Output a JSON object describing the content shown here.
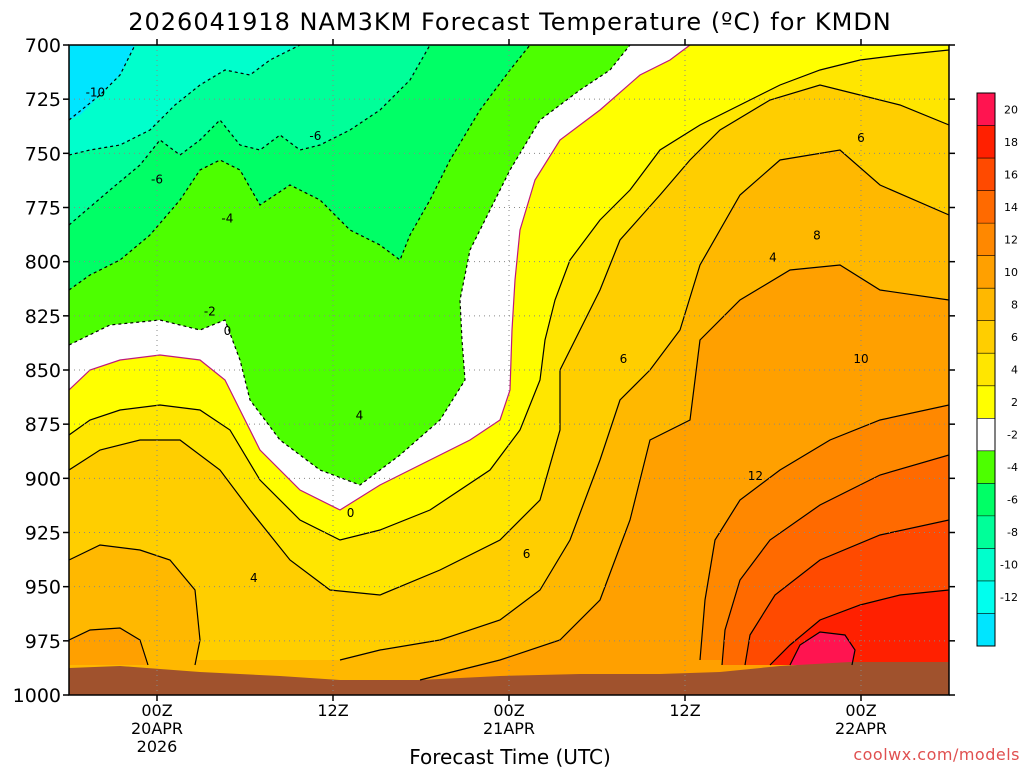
{
  "chart_data": {
    "type": "heatmap",
    "title": "2026041918 NAM3KM Forecast Temperature (ºC) for KMDN",
    "xlabel": "Forecast Time (UTC)",
    "credit": "coolwx.com/models",
    "y_axis": {
      "ticks": [
        700,
        725,
        750,
        775,
        800,
        825,
        850,
        875,
        900,
        925,
        950,
        975,
        1000
      ],
      "range": [
        700,
        1000
      ],
      "inverted": true,
      "grid": true
    },
    "x_axis": {
      "range_hours": [
        -5,
        45
      ],
      "grid": true,
      "ticks": [
        {
          "hour": 0,
          "lines": [
            "00Z",
            "20APR",
            "2026"
          ]
        },
        {
          "hour": 10,
          "lines": [
            "12Z"
          ]
        },
        {
          "hour": 20,
          "lines": [
            "00Z",
            "21APR"
          ]
        },
        {
          "hour": 30,
          "lines": [
            "12Z"
          ]
        },
        {
          "hour": 40,
          "lines": [
            "00Z",
            "22APR"
          ]
        }
      ]
    },
    "colorbar": {
      "labels": [
        "20",
        "18",
        "16",
        "14",
        "12",
        "10",
        "8",
        "6",
        "4",
        "2",
        "-2",
        "-4",
        "-6",
        "-8",
        "-10",
        "-12"
      ],
      "colors": [
        "#ff1450",
        "#ff2000",
        "#ff4a00",
        "#ff6a00",
        "#ff8800",
        "#ffa000",
        "#ffb800",
        "#ffce00",
        "#ffe600",
        "#ffff00",
        "#ffffff",
        "#4dff00",
        "#00ff66",
        "#00ff99",
        "#00ffcc",
        "#00ffee",
        "#00e5ff"
      ]
    },
    "fill_colors": {
      "m12": "#00e5ff",
      "m10": "#00ffcc",
      "m8": "#00ff99",
      "m6": "#00ff66",
      "m4": "#4dff00",
      "m2": "#ffffff",
      "p2": "#ffff00",
      "p4": "#ffe600",
      "p6": "#ffce00",
      "p8": "#ffb800",
      "p10": "#ffa000",
      "p12": "#ff8800",
      "p14": "#ff6a00",
      "p16": "#ff4a00",
      "p18": "#ff2000",
      "p20": "#ff1450",
      "ground": "#a0522d"
    },
    "contour_labels": [
      {
        "text": "-10",
        "hour": -3.5,
        "pressure": 722
      },
      {
        "text": "-6",
        "hour": 0,
        "pressure": 762
      },
      {
        "text": "-6",
        "hour": 9,
        "pressure": 742
      },
      {
        "text": "-4",
        "hour": 4,
        "pressure": 780
      },
      {
        "text": "-2",
        "hour": 3,
        "pressure": 823
      },
      {
        "text": "0",
        "hour": 4,
        "pressure": 832
      },
      {
        "text": "4",
        "hour": 11.5,
        "pressure": 871
      },
      {
        "text": "0",
        "hour": 11,
        "pressure": 916
      },
      {
        "text": "4",
        "hour": 5.5,
        "pressure": 946
      },
      {
        "text": "6",
        "hour": 21,
        "pressure": 935
      },
      {
        "text": "6",
        "hour": 26.5,
        "pressure": 845
      },
      {
        "text": "4",
        "hour": 35,
        "pressure": 798
      },
      {
        "text": "8",
        "hour": 37.5,
        "pressure": 788
      },
      {
        "text": "6",
        "hour": 40,
        "pressure": 743
      },
      {
        "text": "10",
        "hour": 40,
        "pressure": 845
      },
      {
        "text": "12",
        "hour": 34,
        "pressure": 899
      }
    ]
  }
}
